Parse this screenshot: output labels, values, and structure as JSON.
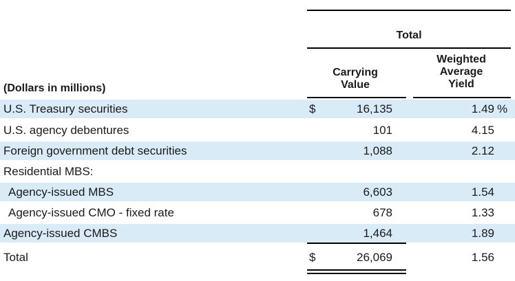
{
  "header": {
    "total": "Total",
    "carrying_value_line1": "Carrying",
    "carrying_value_line2": "Value",
    "weighted_line1": "Weighted",
    "weighted_line2": "Average",
    "weighted_line3": "Yield",
    "units_label": "(Dollars in millions)"
  },
  "rows": [
    {
      "label": "U.S. Treasury securities",
      "dollar": "$",
      "carrying_value": "16,135",
      "yield": "1.49",
      "pct": "%"
    },
    {
      "label": "U.S. agency debentures",
      "dollar": "",
      "carrying_value": "101",
      "yield": "4.15",
      "pct": ""
    },
    {
      "label": "Foreign government debt securities",
      "dollar": "",
      "carrying_value": "1,088",
      "yield": "2.12",
      "pct": ""
    },
    {
      "label": "Residential MBS:",
      "dollar": "",
      "carrying_value": "",
      "yield": "",
      "pct": ""
    },
    {
      "label": "Agency-issued MBS",
      "dollar": "",
      "carrying_value": "6,603",
      "yield": "1.54",
      "pct": ""
    },
    {
      "label": "Agency-issued CMO - fixed rate",
      "dollar": "",
      "carrying_value": "678",
      "yield": "1.33",
      "pct": ""
    },
    {
      "label": "Agency-issued CMBS",
      "dollar": "",
      "carrying_value": "1,464",
      "yield": "1.89",
      "pct": ""
    }
  ],
  "total_row": {
    "label": "Total",
    "dollar": "$",
    "carrying_value": "26,069",
    "yield": "1.56"
  },
  "colors": {
    "shade": "#d9ebf7",
    "rule": "#000000"
  }
}
